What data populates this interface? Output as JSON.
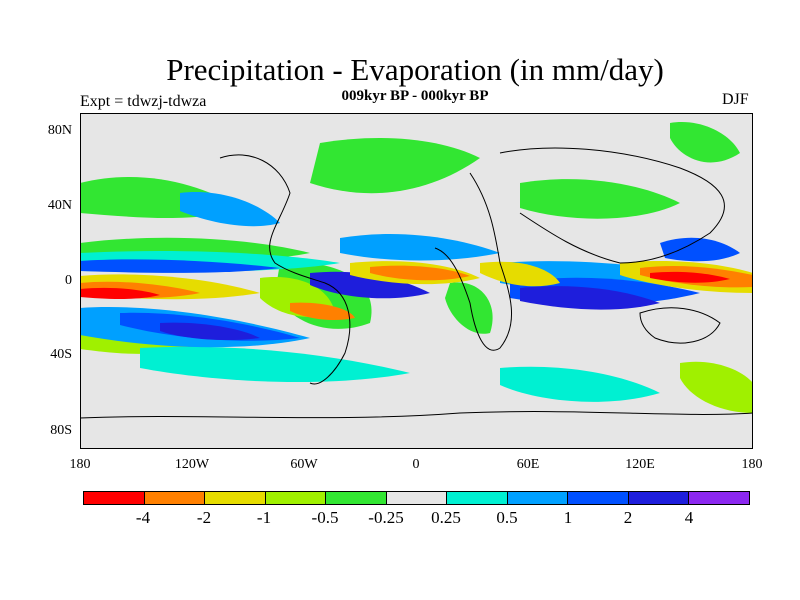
{
  "title": "Precipitation - Evaporation (in mm/day)",
  "subtitle": "009kyr BP - 000kyr BP",
  "experiment": "Expt = tdwzj-tdwza",
  "season": "DJF",
  "latitude_labels": [
    "80N",
    "40N",
    "0",
    "40S",
    "80S"
  ],
  "longitude_labels": [
    "180",
    "120W",
    "60W",
    "0",
    "60E",
    "120E",
    "180"
  ],
  "legend": {
    "colors": [
      "#ff0000",
      "#ff8000",
      "#e6dc00",
      "#a0f000",
      "#32e632",
      "#e6e6e6",
      "#00f0d2",
      "#00a0ff",
      "#0050ff",
      "#1e1edc",
      "#8c28f0"
    ],
    "labels": [
      "-4",
      "-2",
      "-1",
      "-0.5",
      "-0.25",
      "0.25",
      "0.5",
      "1",
      "2",
      "4"
    ]
  }
}
